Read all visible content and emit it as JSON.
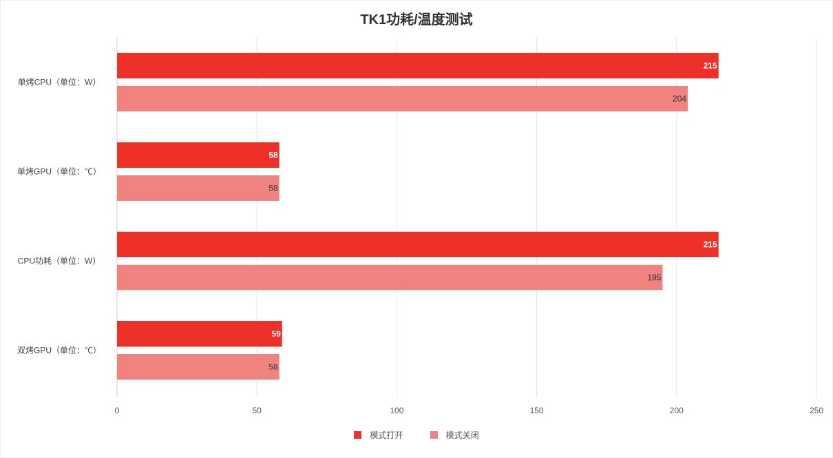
{
  "chart_data": {
    "type": "bar",
    "orientation": "horizontal",
    "title": "TK1功耗/温度测试",
    "categories": [
      "单烤CPU（单位：W）",
      "单烤GPU（单位：℃）",
      "CPU功耗（单位：W）",
      "双烤GPU（单位：℃）"
    ],
    "series": [
      {
        "name": "模式打开",
        "color": "#ee3128",
        "values": [
          215,
          58,
          215,
          59
        ]
      },
      {
        "name": "模式关闭",
        "color": "#f08280",
        "values": [
          204,
          58,
          195,
          58
        ]
      }
    ],
    "xlim": [
      0,
      250
    ],
    "xticks": [
      0,
      50,
      100,
      150,
      200,
      250
    ],
    "grid": true,
    "legend_position": "bottom-center"
  }
}
